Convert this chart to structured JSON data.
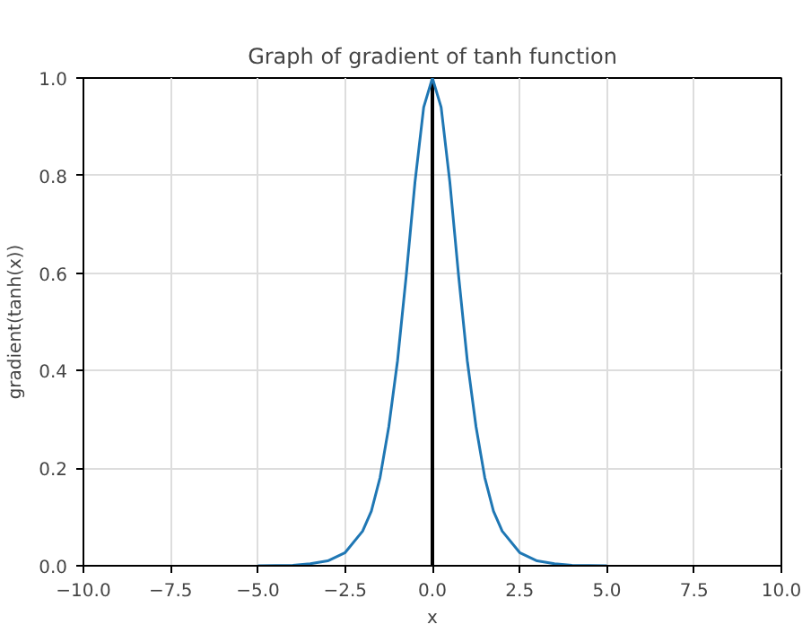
{
  "chart_data": {
    "type": "line",
    "title": "Graph of gradient of tanh function",
    "xlabel": "x",
    "ylabel": "gradient(tanh(x))",
    "x": [
      -5,
      -4,
      -3.5,
      -3,
      -2.5,
      -2,
      -1.75,
      -1.5,
      -1.25,
      -1,
      -0.75,
      -0.5,
      -0.25,
      0,
      0.25,
      0.5,
      0.75,
      1,
      1.25,
      1.5,
      1.75,
      2,
      2.5,
      3,
      3.5,
      4,
      5
    ],
    "series": [
      {
        "color": "#1f77b4",
        "values": [
          0,
          0.001,
          0.004,
          0.01,
          0.027,
          0.071,
          0.112,
          0.181,
          0.285,
          0.42,
          0.595,
          0.786,
          0.94,
          1,
          0.94,
          0.786,
          0.595,
          0.42,
          0.285,
          0.181,
          0.112,
          0.071,
          0.027,
          0.01,
          0.004,
          0.001,
          0
        ]
      }
    ],
    "xlim": [
      -10,
      10
    ],
    "ylim": [
      0,
      1
    ],
    "xticks": [
      {
        "value": -10,
        "label": "−10.0"
      },
      {
        "value": -7.5,
        "label": "−7.5"
      },
      {
        "value": -5,
        "label": "−5.0"
      },
      {
        "value": -2.5,
        "label": "−2.5"
      },
      {
        "value": 0,
        "label": "0.0"
      },
      {
        "value": 2.5,
        "label": "2.5"
      },
      {
        "value": 5,
        "label": "5.0"
      },
      {
        "value": 7.5,
        "label": "7.5"
      },
      {
        "value": 10,
        "label": "10.0"
      }
    ],
    "yticks": [
      {
        "value": 0,
        "label": "0.0"
      },
      {
        "value": 0.2,
        "label": "0.2"
      },
      {
        "value": 0.4,
        "label": "0.4"
      },
      {
        "value": 0.6,
        "label": "0.6"
      },
      {
        "value": 0.8,
        "label": "0.8"
      },
      {
        "value": 1,
        "label": "1.0"
      }
    ],
    "ref_lines": [
      {
        "axis": "x",
        "value": 0,
        "color": "#000000"
      }
    ],
    "grid": true,
    "line_style": "solid"
  }
}
